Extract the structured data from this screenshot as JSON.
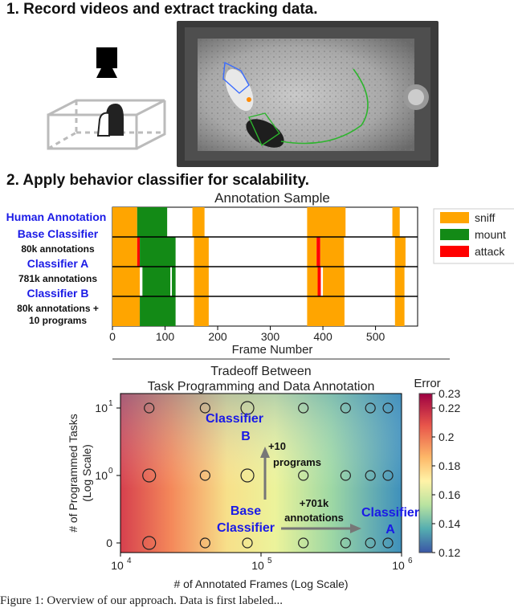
{
  "section1": {
    "title": "1.  Record videos and extract tracking data."
  },
  "section2": {
    "title": "2. Apply behavior classifier for scalability."
  },
  "colors": {
    "sniff": "#ffa500",
    "mount": "#138a16",
    "attack": "#ff0000",
    "label_blue": "#1a1ae6"
  },
  "chart_data": [
    {
      "type": "bar",
      "title": "Annotation Sample",
      "xlabel": "Frame Number",
      "xlim": [
        0,
        580
      ],
      "xticks": [
        0,
        100,
        200,
        300,
        400,
        500
      ],
      "legend": [
        "sniff",
        "mount",
        "attack"
      ],
      "legend_placement": "right",
      "rows": [
        {
          "name": "Human Annotation",
          "sublabel": "",
          "segments": [
            {
              "label": "sniff",
              "start": 0,
              "end": 47
            },
            {
              "label": "mount",
              "start": 47,
              "end": 104
            },
            {
              "label": "sniff",
              "start": 152,
              "end": 175
            },
            {
              "label": "sniff",
              "start": 370,
              "end": 443
            },
            {
              "label": "sniff",
              "start": 532,
              "end": 546
            }
          ]
        },
        {
          "name": "Base Classifier",
          "sublabel": "80k annotations",
          "segments": [
            {
              "label": "sniff",
              "start": 0,
              "end": 47
            },
            {
              "label": "attack",
              "start": 47,
              "end": 52
            },
            {
              "label": "mount",
              "start": 52,
              "end": 120
            },
            {
              "label": "sniff",
              "start": 155,
              "end": 183
            },
            {
              "label": "sniff",
              "start": 370,
              "end": 388
            },
            {
              "label": "attack",
              "start": 388,
              "end": 395
            },
            {
              "label": "sniff",
              "start": 395,
              "end": 440
            },
            {
              "label": "sniff",
              "start": 537,
              "end": 557
            }
          ]
        },
        {
          "name": "Classifier A",
          "sublabel": "781k annotations",
          "segments": [
            {
              "label": "sniff",
              "start": 0,
              "end": 52
            },
            {
              "label": "mount",
              "start": 57,
              "end": 110
            },
            {
              "label": "mount",
              "start": 113,
              "end": 120
            },
            {
              "label": "sniff",
              "start": 155,
              "end": 183
            },
            {
              "label": "sniff",
              "start": 370,
              "end": 390
            },
            {
              "label": "attack",
              "start": 390,
              "end": 396
            },
            {
              "label": "sniff",
              "start": 400,
              "end": 441
            },
            {
              "label": "sniff",
              "start": 537,
              "end": 555
            }
          ]
        },
        {
          "name": "Classifier B",
          "sublabel": "80k annotations +",
          "sublabel2": "10 programs",
          "segments": [
            {
              "label": "sniff",
              "start": 0,
              "end": 52
            },
            {
              "label": "mount",
              "start": 52,
              "end": 120
            },
            {
              "label": "sniff",
              "start": 155,
              "end": 183
            },
            {
              "label": "sniff",
              "start": 370,
              "end": 441
            },
            {
              "label": "sniff",
              "start": 537,
              "end": 555
            }
          ]
        }
      ]
    },
    {
      "type": "heatmap",
      "title": "Tradeoff Between",
      "subtitle": "Task Programming and Data Annotation",
      "xlabel": "# of Annotated Frames (Log Scale)",
      "ylabel": "# of Programmed Tasks",
      "ylabel2": "(Log Scale)",
      "xscale": "log",
      "xlim": [
        10000,
        1000000
      ],
      "xtick_labels": [
        "10",
        "10",
        "10"
      ],
      "xtick_exponents": [
        "4",
        "5",
        "6"
      ],
      "ytick_labels": [
        "0",
        "10",
        "10"
      ],
      "ytick_exponents": [
        "",
        "0",
        "1"
      ],
      "colorbar": {
        "label": "Error",
        "min": 0.12,
        "max": 0.23,
        "ticks": [
          "0.23",
          "0.22",
          "0.2",
          "0.18",
          "0.16",
          "0.14",
          "0.12"
        ],
        "values": [
          0.23,
          0.22,
          0.2,
          0.18,
          0.16,
          0.14,
          0.12
        ]
      },
      "points": {
        "x": [
          16000,
          40000,
          80000,
          200000,
          400000,
          600000,
          800000
        ],
        "y_levels": [
          0,
          1,
          10
        ],
        "large": [
          [
            16000,
            0
          ],
          [
            16000,
            1
          ],
          [
            80000,
            10
          ],
          [
            80000,
            1
          ]
        ]
      },
      "annotations": {
        "classifier_b": [
          "Classifier",
          "B"
        ],
        "programs": [
          "+10",
          "programs"
        ],
        "base": [
          "Base",
          "Classifier"
        ],
        "annotations": [
          "+701k",
          "annotations"
        ],
        "classifier_a": [
          "Classifier",
          "A"
        ]
      }
    }
  ],
  "caption": "Figure 1: Overview of our approach. Data is first labeled..."
}
